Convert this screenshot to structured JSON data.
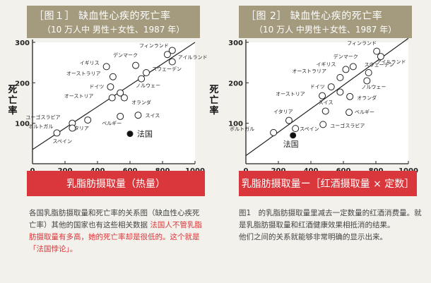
{
  "panel1": {
    "title": "［图１］ 缺血性心疾的死亡率",
    "subtitle": "（10 万人中 男性＋女性、1987 年）",
    "ylabel": "死亡率",
    "caption": "乳脂肪摄取量（热量）",
    "note_plain_1": "各国乳脂肪摄取量和死亡率的关系图（缺血性心疾死亡率）其他的国家也有这些相关数据",
    "note_red": "法国人不管乳脂肪摄取量有多高，她的死亡率却是很低的。这个就是「法国悖论」。"
  },
  "panel2": {
    "title": "［图 2］ 缺血性心疾的死亡率",
    "subtitle": "（10 万人 中男性＋女性、1987 年）",
    "ylabel": "死亡率",
    "caption": "乳脂肪摄取量ー［红酒摄取量 × 定数］",
    "note_1": "图1　的乳脂肪摄取量里减去一定数量的红酒消费量。就是乳脂肪摄取量和红酒健康效果相抵消的结果。",
    "note_2": "他们之间的关系就能够非常明确的显示出来。"
  },
  "colors": {
    "title_bg": "#a49a7d",
    "caption_bg": "#d9373b",
    "background": "#f2f1ec",
    "plot_bg": "#ffffff",
    "note_red": "#d9373b"
  },
  "chart_data": [
    {
      "type": "scatter",
      "title": "［图１］ 缺血性心疾的死亡率",
      "subtitle": "（10 万人中 男性＋女性、1987 年）",
      "xlabel": "乳脂肪摄取量（热量）",
      "ylabel": "死亡率",
      "xlim": [
        0,
        1000
      ],
      "ylim": [
        0,
        300
      ],
      "xticks": [
        0,
        200,
        400,
        600,
        800,
        1000
      ],
      "yticks": [
        100,
        200,
        300
      ],
      "grid": false,
      "legend": "none",
      "trendline": {
        "x": [
          0,
          1000
        ],
        "y": [
          35,
          300
        ]
      },
      "points": [
        {
          "label": "フィンランド",
          "x": 830,
          "y": 270,
          "filled": false
        },
        {
          "label": "",
          "x": 860,
          "y": 280,
          "filled": false
        },
        {
          "label": "アイルランド",
          "x": 860,
          "y": 252,
          "filled": false
        },
        {
          "label": "デンマーク",
          "x": 635,
          "y": 243,
          "filled": false
        },
        {
          "label": "イギリス",
          "x": 455,
          "y": 240,
          "filled": false
        },
        {
          "label": "スウェーデン",
          "x": 700,
          "y": 225,
          "filled": false
        },
        {
          "label": "オーストラリア",
          "x": 495,
          "y": 215,
          "filled": false
        },
        {
          "label": "ノルウェー",
          "x": 670,
          "y": 210,
          "filled": false
        },
        {
          "label": "ドイツ",
          "x": 480,
          "y": 190,
          "filled": false
        },
        {
          "label": "",
          "x": 540,
          "y": 175,
          "filled": false
        },
        {
          "label": "オーストリア",
          "x": 490,
          "y": 163,
          "filled": false
        },
        {
          "label": "オランダ",
          "x": 565,
          "y": 163,
          "filled": false
        },
        {
          "label": "スイス",
          "x": 650,
          "y": 120,
          "filled": false
        },
        {
          "label": "ベルギー",
          "x": 540,
          "y": 117,
          "filled": false
        },
        {
          "label": "イタリア",
          "x": 340,
          "y": 108,
          "filled": false
        },
        {
          "label": "ユーゴスラビア",
          "x": 245,
          "y": 100,
          "filled": false
        },
        {
          "label": "ポルトガル",
          "x": 245,
          "y": 88,
          "filled": false
        },
        {
          "label": "スペイン",
          "x": 150,
          "y": 76,
          "filled": false
        },
        {
          "label": "法国",
          "x": 600,
          "y": 74,
          "filled": true
        }
      ]
    },
    {
      "type": "scatter",
      "title": "［图 2］ 缺血性心疾的死亡率",
      "subtitle": "（10 万人 中男性＋女性、1987 年）",
      "xlabel": "乳脂肪摄取量ー［红酒摄取量 × 定数］",
      "ylabel": "死亡率",
      "xlim": [
        0,
        1000
      ],
      "ylim": [
        0,
        300
      ],
      "xticks": [
        0,
        200,
        400,
        600,
        800,
        1000
      ],
      "yticks": [
        100,
        200,
        300
      ],
      "grid": false,
      "legend": "none",
      "trendline": {
        "x": [
          0,
          1000
        ],
        "y": [
          20,
          315
        ]
      },
      "points": [
        {
          "label": "フィンランド",
          "x": 805,
          "y": 278,
          "filled": false
        },
        {
          "label": "アイルランド",
          "x": 830,
          "y": 265,
          "filled": false
        },
        {
          "label": "デンマーク",
          "x": 660,
          "y": 240,
          "filled": false
        },
        {
          "label": "イギリス",
          "x": 615,
          "y": 233,
          "filled": false
        },
        {
          "label": "スウェーデン",
          "x": 755,
          "y": 225,
          "filled": false
        },
        {
          "label": "オーストラリア",
          "x": 580,
          "y": 213,
          "filled": false
        },
        {
          "label": "ノルウェー",
          "x": 745,
          "y": 205,
          "filled": false
        },
        {
          "label": "ドイツ",
          "x": 525,
          "y": 190,
          "filled": false
        },
        {
          "label": "",
          "x": 580,
          "y": 177,
          "filled": false
        },
        {
          "label": "オーストリア",
          "x": 470,
          "y": 168,
          "filled": false
        },
        {
          "label": "オランダ",
          "x": 640,
          "y": 166,
          "filled": false
        },
        {
          "label": "スイス",
          "x": 490,
          "y": 130,
          "filled": false
        },
        {
          "label": "ベルギー",
          "x": 635,
          "y": 127,
          "filled": false
        },
        {
          "label": "イタリア",
          "x": 265,
          "y": 107,
          "filled": false
        },
        {
          "label": "ユーゴスラビア",
          "x": 475,
          "y": 97,
          "filled": false
        },
        {
          "label": "スペイン",
          "x": 305,
          "y": 87,
          "filled": false
        },
        {
          "label": "ポルトガル",
          "x": 170,
          "y": 77,
          "filled": false
        },
        {
          "label": "法国",
          "x": 290,
          "y": 70,
          "filled": true
        }
      ]
    }
  ]
}
